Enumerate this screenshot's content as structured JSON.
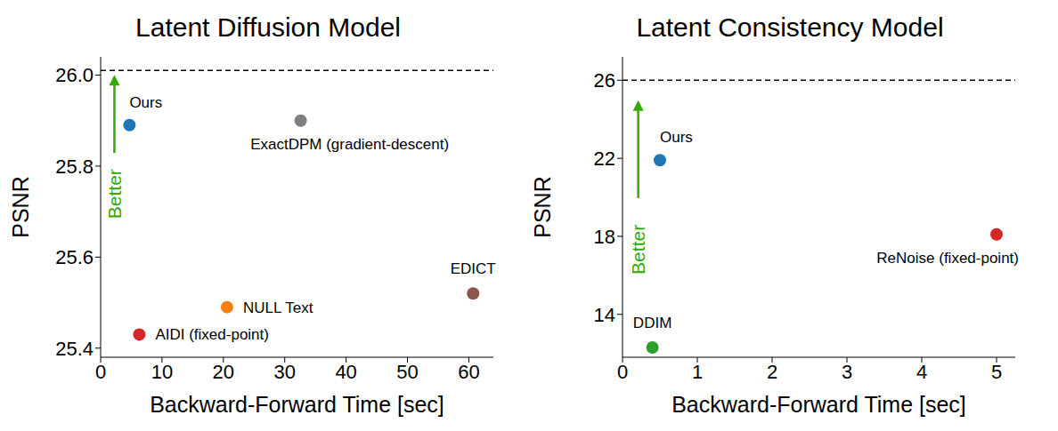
{
  "chart_data": [
    {
      "type": "scatter",
      "title": "Latent Diffusion Model",
      "x_label": "Backward-Forward Time [sec]",
      "y_label": "PSNR",
      "xlim": [
        0,
        64
      ],
      "xticks": [
        0,
        10,
        20,
        30,
        40,
        50,
        60
      ],
      "ylim": [
        25.38,
        26.04
      ],
      "yticks": [
        25.4,
        25.6,
        25.8,
        {
          "value": 26,
          "label": "26.0"
        }
      ],
      "labels": [
        "Ours",
        "ExactDPM (gradient-descent)",
        "EDICT",
        "NULL Text",
        "AIDI (fixed-point)"
      ],
      "x": [
        4.7,
        32.6,
        60.7,
        20.6,
        6.3
      ],
      "values": [
        25.89,
        25.9,
        25.52,
        25.49,
        25.43
      ],
      "colors": [
        "#1f77b4",
        "#7f7f7f",
        "#8c564b",
        "#ff7f0e",
        "#d62728"
      ],
      "reference_line": 26.01,
      "annotation": "Better"
    },
    {
      "type": "scatter",
      "title": "Latent Consistency Model",
      "x_label": "Backward-Forward Time [sec]",
      "y_label": "PSNR",
      "xlim": [
        0,
        5.25
      ],
      "xticks": [
        0,
        1,
        2,
        3,
        4,
        5
      ],
      "ylim": [
        11.8,
        27.2
      ],
      "yticks": [
        14,
        18,
        22,
        26
      ],
      "labels": [
        "Ours",
        "ReNoise (fixed-point)",
        "DDIM"
      ],
      "x": [
        0.5,
        5.0,
        0.4
      ],
      "values": [
        21.9,
        18.1,
        12.3
      ],
      "colors": [
        "#1f77b4",
        "#d62728",
        "#2ca02c"
      ],
      "reference_line": 26,
      "annotation": "Better"
    }
  ]
}
